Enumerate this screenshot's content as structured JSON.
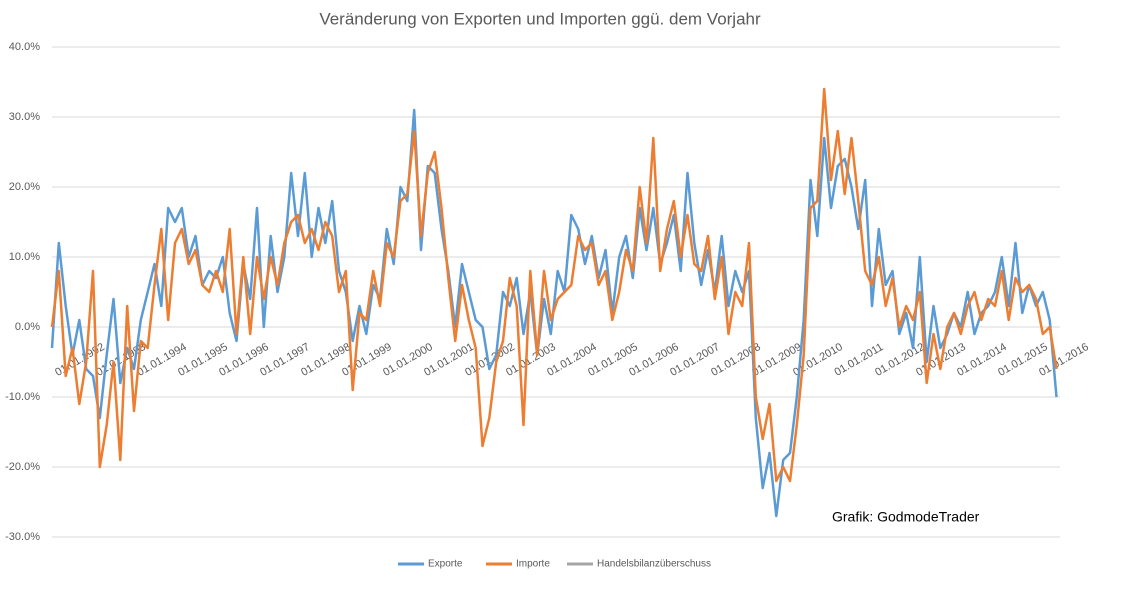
{
  "chart_data": {
    "type": "line",
    "title": "Veränderung von Exporten und Importen ggü. dem Vorjahr",
    "annotation": "Grafik: GodmodeTrader",
    "categories": [
      "01.01.1992",
      null,
      null,
      null,
      null,
      null,
      "01.01.1993",
      null,
      null,
      null,
      null,
      null,
      "01.01.1994",
      null,
      null,
      null,
      null,
      null,
      "01.01.1995",
      null,
      null,
      null,
      null,
      null,
      "01.01.1996",
      null,
      null,
      null,
      null,
      null,
      "01.01.1997",
      null,
      null,
      null,
      null,
      null,
      "01.01.1998",
      null,
      null,
      null,
      null,
      null,
      "01.01.1999",
      null,
      null,
      null,
      null,
      null,
      "01.01.2000",
      null,
      null,
      null,
      null,
      null,
      "01.01.2001",
      null,
      null,
      null,
      null,
      null,
      "01.01.2002",
      null,
      null,
      null,
      null,
      null,
      "01.01.2003",
      null,
      null,
      null,
      null,
      null,
      "01.01.2004",
      null,
      null,
      null,
      null,
      null,
      "01.01.2005",
      null,
      null,
      null,
      null,
      null,
      "01.01.2006",
      null,
      null,
      null,
      null,
      null,
      "01.01.2007",
      null,
      null,
      null,
      null,
      null,
      "01.01.2008",
      null,
      null,
      null,
      null,
      null,
      "01.01.2009",
      null,
      null,
      null,
      null,
      null,
      "01.01.2010",
      null,
      null,
      null,
      null,
      null,
      "01.01.2011",
      null,
      null,
      null,
      null,
      null,
      "01.01.2012",
      null,
      null,
      null,
      null,
      null,
      "01.01.2013",
      null,
      null,
      null,
      null,
      null,
      "01.01.2014",
      null,
      null,
      null,
      null,
      null,
      "01.01.2015",
      null,
      null,
      null,
      null,
      null,
      "01.01.2016",
      null,
      null,
      null
    ],
    "series": [
      {
        "name": "Exporte",
        "color": "#5b9bd5",
        "values": [
          -3,
          12,
          3,
          -4,
          1,
          -6,
          -7,
          -13,
          -4,
          4,
          -8,
          -3,
          -6,
          1,
          5,
          9,
          3,
          17,
          15,
          17,
          10,
          13,
          6,
          8,
          7,
          10,
          2,
          -2,
          9,
          4,
          17,
          0,
          13,
          5,
          10,
          22,
          13,
          22,
          10,
          17,
          12,
          18,
          8,
          5,
          -2,
          3,
          -1,
          6,
          4,
          14,
          9,
          20,
          18,
          31,
          11,
          23,
          22,
          14,
          8,
          0,
          9,
          5,
          1,
          0,
          -6,
          -4,
          5,
          3,
          7,
          -1,
          5,
          -4,
          4,
          -1,
          8,
          5,
          16,
          14,
          9,
          13,
          7,
          11,
          2,
          10,
          13,
          7,
          17,
          11,
          17,
          9,
          12,
          16,
          8,
          22,
          12,
          6,
          11,
          5,
          13,
          3,
          8,
          5,
          8,
          -13,
          -23,
          -18,
          -27,
          -19,
          -18,
          -10,
          1,
          21,
          13,
          27,
          17,
          23,
          24,
          20,
          14,
          21,
          3,
          14,
          6,
          8,
          -1,
          2,
          -3,
          10,
          -5,
          3,
          -3,
          -1,
          2,
          0,
          5,
          -1,
          2,
          3,
          5,
          10,
          3,
          12,
          2,
          6,
          3,
          5,
          1,
          -10
        ]
      },
      {
        "name": "Importe",
        "color": "#ed7d31",
        "values": [
          0,
          8,
          -7,
          -3,
          -11,
          -5,
          8,
          -20,
          -14,
          -5,
          -19,
          3,
          -12,
          -2,
          -3,
          6,
          14,
          1,
          12,
          14,
          9,
          11,
          6,
          5,
          8,
          5,
          14,
          -1,
          10,
          -1,
          10,
          4,
          10,
          6,
          12,
          15,
          16,
          12,
          14,
          11,
          15,
          13,
          5,
          8,
          -9,
          2,
          1,
          8,
          3,
          12,
          10,
          18,
          19,
          28,
          13,
          22,
          25,
          17,
          7,
          -2,
          6,
          1,
          -3,
          -17,
          -13,
          -5,
          -2,
          7,
          3,
          -14,
          8,
          -4,
          8,
          1,
          4,
          5,
          6,
          13,
          11,
          12,
          6,
          8,
          1,
          5,
          11,
          8,
          20,
          12,
          27,
          8,
          14,
          18,
          10,
          16,
          9,
          8,
          13,
          4,
          10,
          -1,
          5,
          3,
          12,
          -10,
          -16,
          -11,
          -22,
          -20,
          -22,
          -14,
          -4,
          17,
          18,
          34,
          21,
          28,
          19,
          27,
          18,
          8,
          6,
          10,
          3,
          7,
          0,
          3,
          1,
          5,
          -8,
          -1,
          -6,
          0,
          2,
          -1,
          3,
          5,
          1,
          4,
          3,
          8,
          1,
          7,
          5,
          6,
          4,
          -1,
          0,
          -6
        ]
      },
      {
        "name": "Handelsbilanzüberschuss",
        "color": "#a5a5a5"
      }
    ],
    "ylim": [
      -30,
      40
    ],
    "yticks": [
      {
        "value": -30,
        "label": "-30.0%"
      },
      {
        "value": -20,
        "label": "-20.0%"
      },
      {
        "value": -10,
        "label": "-10.0%"
      },
      {
        "value": 0,
        "label": "0.0%"
      },
      {
        "value": 10,
        "label": "10.0%"
      },
      {
        "value": 20,
        "label": "20.0%"
      },
      {
        "value": 30,
        "label": "30.0%"
      },
      {
        "value": 40,
        "label": "40.0%"
      }
    ],
    "grid": true,
    "legend": "bottom"
  }
}
